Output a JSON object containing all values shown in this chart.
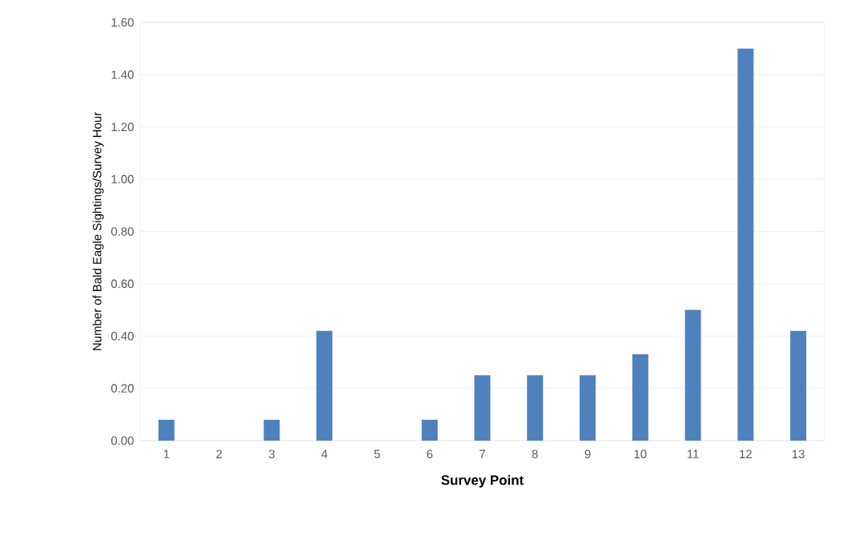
{
  "chart_data": {
    "type": "bar",
    "xlabel": "Survey Point",
    "ylabel": "Number of Bald Eagle Sightings/Survey Hour",
    "categories": [
      "1",
      "2",
      "3",
      "4",
      "5",
      "6",
      "7",
      "8",
      "9",
      "10",
      "11",
      "12",
      "13"
    ],
    "values": [
      0.08,
      0,
      0.08,
      0.42,
      0,
      0.08,
      0.25,
      0.25,
      0.25,
      0.33,
      0.5,
      1.5,
      0.42
    ],
    "color": "#4f81bd",
    "ylim": [
      0,
      1.6
    ],
    "yticks": [
      {
        "value": 0,
        "label": "0.00"
      },
      {
        "value": 0.2,
        "label": "0.20"
      },
      {
        "value": 0.4,
        "label": "0.40"
      },
      {
        "value": 0.6,
        "label": "0.60"
      },
      {
        "value": 0.8,
        "label": "0.80"
      },
      {
        "value": 1.0,
        "label": "1.00"
      },
      {
        "value": 1.2,
        "label": "1.20"
      },
      {
        "value": 1.4,
        "label": "1.40"
      },
      {
        "value": 1.6,
        "label": "1.60"
      }
    ],
    "grid": "y"
  }
}
